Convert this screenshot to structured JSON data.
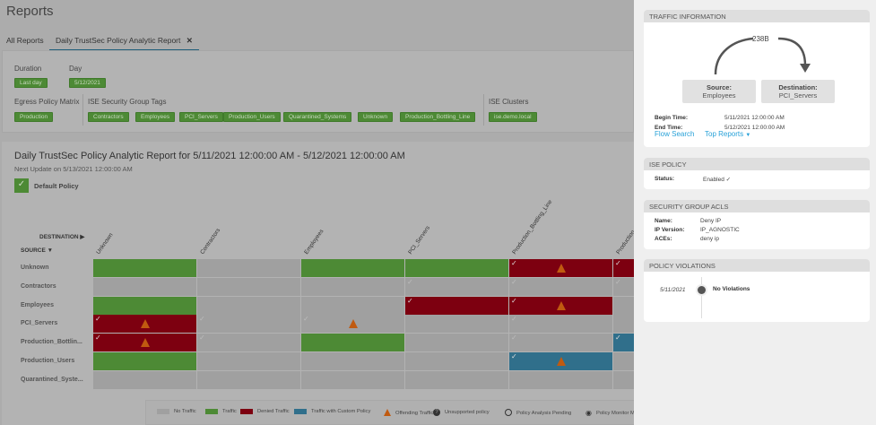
{
  "page": {
    "title": "Reports"
  },
  "tabs": [
    {
      "label": "All Reports"
    },
    {
      "label": "Daily TrustSec Policy Analytic Report",
      "close_icon": "close-icon",
      "active": true
    }
  ],
  "filters": {
    "duration": {
      "label": "Duration",
      "value": "Last day"
    },
    "day": {
      "label": "Day",
      "value": "5/12/2021"
    },
    "egress": {
      "label": "Egress Policy Matrix",
      "value": "Production"
    },
    "sgt": {
      "label": "ISE Security Group Tags",
      "values": [
        "Contractors",
        "Employees",
        "PCI_Servers",
        "Production_Users",
        "Quarantined_Systems",
        "Unknown",
        "Production_Bottling_Line"
      ]
    },
    "clusters": {
      "label": "ISE Clusters",
      "value": "ise.demo.local"
    }
  },
  "report": {
    "title": "Daily TrustSec Policy Analytic Report for 5/11/2021 12:00:00 AM - 5/12/2021 12:00:00 AM",
    "next_update": "Next Update on 5/13/2021 12:00:00 AM",
    "default_policy": "Default Policy",
    "destination_label": "DESTINATION",
    "source_label": "SOURCE",
    "columns": [
      "Unknown",
      "Contractors",
      "Employees",
      "PCI_Servers",
      "Production_Bottling_Line",
      "Production_Users"
    ],
    "rows": [
      {
        "label": "Unknown",
        "cells": [
          "G",
          "N",
          "G",
          "G",
          "R+cw",
          "R+c"
        ]
      },
      {
        "label": "Contractors",
        "cells": [
          "N",
          "N",
          "N",
          "N+c",
          "N+c",
          "N+c"
        ]
      },
      {
        "label": "Employees",
        "cells": [
          "G",
          "N",
          "N",
          "R+c",
          "R+cw",
          "N"
        ]
      },
      {
        "label": "PCI_Servers",
        "cells": [
          "R+cw",
          "N+c",
          "N+cw",
          "N",
          "N+c",
          "N"
        ]
      },
      {
        "label": "Production_Bottlin...",
        "cells": [
          "R+cw",
          "N+c",
          "G",
          "N",
          "N+c",
          "B+c"
        ]
      },
      {
        "label": "Production_Users",
        "cells": [
          "G",
          "N",
          "N",
          "N",
          "B+cw",
          "N"
        ]
      },
      {
        "label": "Quarantined_Syste...",
        "cells": [
          "N",
          "N",
          "N",
          "N",
          "N",
          "N"
        ]
      }
    ],
    "colors": {
      "N": "#a0a0a0",
      "G": "#4d8a35",
      "R": "#7d0010",
      "B": "#306f8b",
      "warning": "#c05a10"
    }
  },
  "legend": [
    {
      "label": "No Traffic",
      "swatch": "#a0a0a0"
    },
    {
      "label": "Traffic",
      "swatch": "#4d8a35"
    },
    {
      "label": "Denied Traffic",
      "swatch": "#7d0010"
    },
    {
      "label": "Traffic with Custom Policy",
      "swatch": "#306f8b"
    },
    {
      "label": "Offending Traffic",
      "icon": "warning-icon"
    },
    {
      "label": "Unsupported policy",
      "icon": "question-icon"
    },
    {
      "label": "Policy Analysis Pending",
      "icon": "clock-icon"
    },
    {
      "label": "Policy Monitor M",
      "icon": "eye-icon"
    }
  ],
  "traffic": {
    "header": "TRAFFIC INFORMATION",
    "bytes": "238B",
    "source_label": "Source:",
    "source": "Employees",
    "dest_label": "Destination:",
    "dest": "PCI_Servers",
    "begin_label": "Begin Time:",
    "begin": "5/11/2021 12:00:00 AM",
    "end_label": "End Time:",
    "end": "5/12/2021 12:00:00 AM",
    "flow_search": "Flow Search",
    "top_reports": "Top Reports"
  },
  "ise_policy": {
    "header": "ISE POLICY",
    "status_label": "Status:",
    "status": "Enabled"
  },
  "acls": {
    "header": "SECURITY GROUP ACLS",
    "name_label": "Name:",
    "name": "Deny IP",
    "ipv_label": "IP Version:",
    "ipv": "IP_AGNOSTIC",
    "aces_label": "ACEs:",
    "aces": "deny ip"
  },
  "violations": {
    "header": "POLICY VIOLATIONS",
    "date": "5/11/2021",
    "text": "No Violations"
  }
}
